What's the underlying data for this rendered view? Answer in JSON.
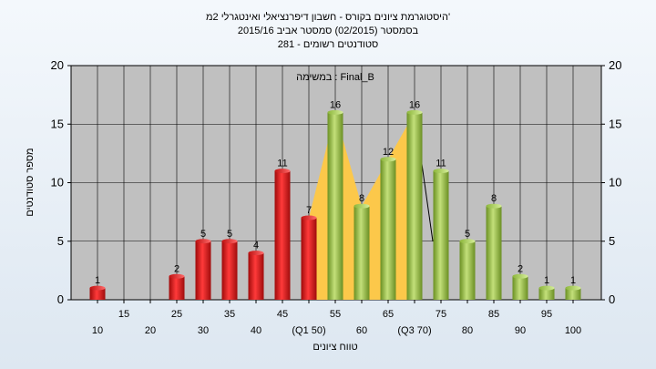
{
  "chart_data": {
    "type": "bar",
    "title_lines": [
      "היסטוגרמת ציונים בקורס - חשבון דיפרנציאלי ואינטגרלי 2מ'",
      "בסמסטר  (02/2015)  סמסטר אביב 2015/16",
      "281 - סטודנטים רשומים"
    ],
    "series_title": "במשימה : Final_B",
    "ylabel": "מספר סטודנטים",
    "xlabel": "טווח ציונים",
    "ylim": [
      0,
      20
    ],
    "yticks": [
      0,
      5,
      10,
      15,
      20
    ],
    "grid": true,
    "categories": [
      10,
      15,
      20,
      25,
      30,
      35,
      40,
      45,
      50,
      55,
      60,
      65,
      70,
      75,
      80,
      85,
      90,
      95,
      100
    ],
    "x_tick_labels": [
      "10",
      "15",
      "20",
      "25",
      "30",
      "35",
      "40",
      "45",
      "(Q1 50)",
      "55",
      "60",
      "65",
      "(Q3 70)",
      "75",
      "80",
      "85",
      "90",
      "95",
      "100"
    ],
    "values": [
      1,
      0,
      0,
      2,
      5,
      5,
      4,
      11,
      7,
      16,
      8,
      12,
      16,
      11,
      5,
      8,
      2,
      1,
      1
    ],
    "value_labels": [
      "1",
      "",
      "",
      "2",
      "5",
      "5",
      "4",
      "11",
      "7",
      "16",
      "8",
      "12",
      "16",
      "11",
      "5",
      "8",
      "2",
      "1",
      "1"
    ],
    "bar_colors": {
      "fail": "#e01818",
      "pass": "#96c043"
    },
    "fail_below": 55,
    "quartile_band": {
      "q1": 50,
      "q3": 70,
      "color": "#fcc84a"
    }
  }
}
